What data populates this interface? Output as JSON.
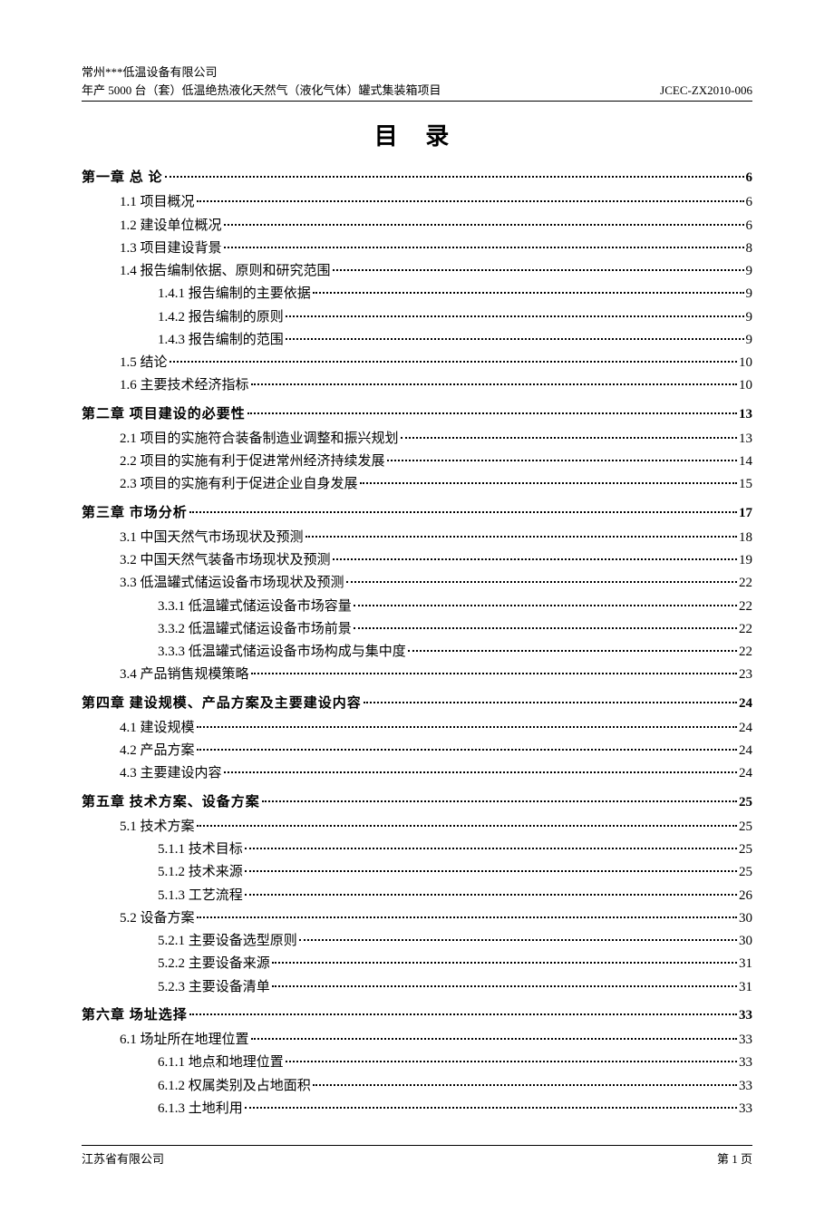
{
  "header": {
    "company_line": "常州***低温设备有限公司",
    "project_line": "年产 5000 台（套）低温绝热液化天然气（液化气体）罐式集装箱项目",
    "doc_code": "JCEC-ZX2010-006"
  },
  "title": "目  录",
  "toc": [
    {
      "level": 1,
      "label": "第一章  总  论",
      "page": "6"
    },
    {
      "level": 2,
      "label": "1.1 项目概况",
      "page": "6"
    },
    {
      "level": 2,
      "label": "1.2 建设单位概况",
      "page": "6"
    },
    {
      "level": 2,
      "label": "1.3 项目建设背景",
      "page": "8"
    },
    {
      "level": 2,
      "label": "1.4 报告编制依据、原则和研究范围",
      "page": "9"
    },
    {
      "level": 3,
      "label": "1.4.1 报告编制的主要依据",
      "page": "9"
    },
    {
      "level": 3,
      "label": "1.4.2 报告编制的原则",
      "page": "9"
    },
    {
      "level": 3,
      "label": "1.4.3 报告编制的范围",
      "page": "9"
    },
    {
      "level": 2,
      "label": "1.5 结论",
      "page": "10"
    },
    {
      "level": 2,
      "label": "1.6 主要技术经济指标",
      "page": "10"
    },
    {
      "level": 1,
      "label": "第二章  项目建设的必要性",
      "page": "13"
    },
    {
      "level": 2,
      "label": "2.1 项目的实施符合装备制造业调整和振兴规划",
      "page": "13"
    },
    {
      "level": 2,
      "label": "2.2 项目的实施有利于促进常州经济持续发展",
      "page": "14"
    },
    {
      "level": 2,
      "label": "2.3 项目的实施有利于促进企业自身发展",
      "page": "15"
    },
    {
      "level": 1,
      "label": "第三章  市场分析",
      "page": "17"
    },
    {
      "level": 2,
      "label": "3.1 中国天然气市场现状及预测",
      "page": "18"
    },
    {
      "level": 2,
      "label": "3.2 中国天然气装备市场现状及预测",
      "page": "19"
    },
    {
      "level": 2,
      "label": "3.3 低温罐式储运设备市场现状及预测",
      "page": "22"
    },
    {
      "level": 3,
      "label": "3.3.1  低温罐式储运设备市场容量",
      "page": "22"
    },
    {
      "level": 3,
      "label": "3.3.2  低温罐式储运设备市场前景",
      "page": "22"
    },
    {
      "level": 3,
      "label": "3.3.3  低温罐式储运设备市场构成与集中度",
      "page": "22"
    },
    {
      "level": 2,
      "label": "3.4 产品销售规模策略",
      "page": "23"
    },
    {
      "level": 1,
      "label": "第四章  建设规模、产品方案及主要建设内容",
      "page": "24"
    },
    {
      "level": 2,
      "label": "4.1 建设规模",
      "page": "24"
    },
    {
      "level": 2,
      "label": "4.2 产品方案",
      "page": "24"
    },
    {
      "level": 2,
      "label": "4.3 主要建设内容",
      "page": "24"
    },
    {
      "level": 1,
      "label": "第五章  技术方案、设备方案",
      "page": "25"
    },
    {
      "level": 2,
      "label": "5.1 技术方案",
      "page": "25"
    },
    {
      "level": 3,
      "label": "5.1.1  技术目标",
      "page": "25"
    },
    {
      "level": 3,
      "label": "5.1.2  技术来源",
      "page": "25"
    },
    {
      "level": 3,
      "label": "5.1.3  工艺流程",
      "page": "26"
    },
    {
      "level": 2,
      "label": "5.2  设备方案",
      "page": "30"
    },
    {
      "level": 3,
      "label": "5.2.1 主要设备选型原则",
      "page": "30"
    },
    {
      "level": 3,
      "label": "5.2.2 主要设备来源",
      "page": "31"
    },
    {
      "level": 3,
      "label": "5.2.3 主要设备清单",
      "page": "31"
    },
    {
      "level": 1,
      "label": "第六章  场址选择",
      "page": "33"
    },
    {
      "level": 2,
      "label": "6.1 场址所在地理位置",
      "page": "33"
    },
    {
      "level": 3,
      "label": "6.1.1  地点和地理位置",
      "page": "33"
    },
    {
      "level": 3,
      "label": "6.1.2  权属类别及占地面积",
      "page": "33"
    },
    {
      "level": 3,
      "label": "6.1.3  土地利用",
      "page": "33"
    }
  ],
  "footer": {
    "left": "江苏省有限公司",
    "right": "第 1 页"
  },
  "colors": {
    "text": "#000000",
    "background": "#ffffff",
    "rule": "#000000"
  },
  "typography": {
    "body_font": "SimSun",
    "title_fontsize_pt": 20,
    "body_fontsize_pt": 11,
    "header_fontsize_pt": 10
  }
}
